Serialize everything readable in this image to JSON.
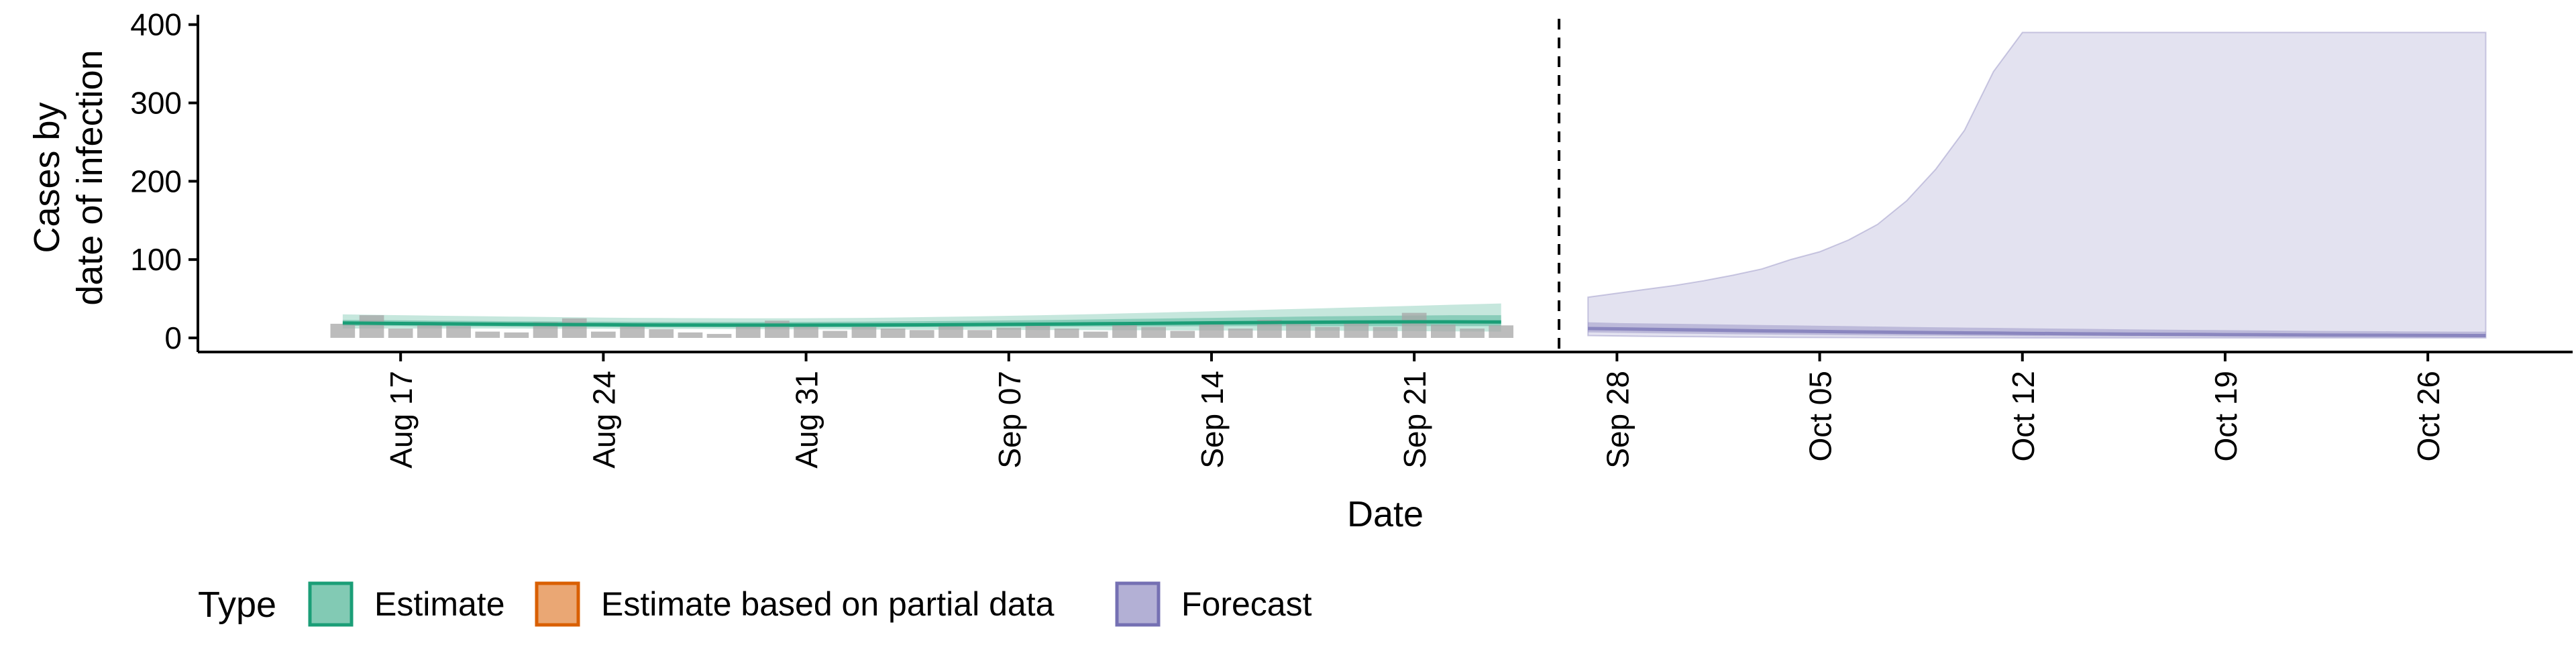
{
  "chart_data": {
    "type": "area",
    "title": "",
    "xlabel": "Date",
    "ylabel": [
      "Cases by",
      "date of infection"
    ],
    "ylim": [
      -18,
      410
    ],
    "xlim": [
      "2020-08-10",
      "2020-10-31"
    ],
    "y_ticks": [
      0,
      100,
      200,
      300,
      400
    ],
    "x_ticks": [
      {
        "date": "2020-08-17",
        "label": "Aug 17"
      },
      {
        "date": "2020-08-24",
        "label": "Aug 24"
      },
      {
        "date": "2020-08-31",
        "label": "Aug 31"
      },
      {
        "date": "2020-09-07",
        "label": "Sep 07"
      },
      {
        "date": "2020-09-14",
        "label": "Sep 14"
      },
      {
        "date": "2020-09-21",
        "label": "Sep 21"
      },
      {
        "date": "2020-09-28",
        "label": "Sep 28"
      },
      {
        "date": "2020-10-05",
        "label": "Oct 05"
      },
      {
        "date": "2020-10-12",
        "label": "Oct 12"
      },
      {
        "date": "2020-10-19",
        "label": "Oct 19"
      },
      {
        "date": "2020-10-26",
        "label": "Oct 26"
      }
    ],
    "divider_date": "2020-09-26",
    "grid": false,
    "colors": {
      "estimate": "#1b9e77",
      "partial": "#d95f02",
      "forecast": "#7570b3",
      "bars": "#a6a6a6",
      "divider": "#000000"
    },
    "observed_cases": {
      "start_date": "2020-08-15",
      "values": [
        18,
        29,
        12,
        16,
        15,
        8,
        7,
        20,
        25,
        8,
        16,
        11,
        7,
        5,
        16,
        22,
        15,
        9,
        14,
        12,
        10,
        17,
        10,
        13,
        17,
        12,
        8,
        20,
        14,
        9,
        21,
        12,
        23,
        20,
        14,
        21,
        14,
        32,
        17,
        12,
        16
      ]
    },
    "estimate": {
      "start_date": "2020-08-15",
      "median": [
        19,
        18.7,
        18.4,
        18.1,
        17.9,
        17.6,
        17.4,
        17.2,
        17,
        16.8,
        16.6,
        16.5,
        16.4,
        16.3,
        16.3,
        16.3,
        16.3,
        16.4,
        16.5,
        16.6,
        16.7,
        16.9,
        17.1,
        17.3,
        17.5,
        17.7,
        18,
        18.3,
        18.6,
        18.9,
        19.2,
        19.5,
        19.7,
        19.9,
        20.1,
        20.3,
        20.4,
        20.5,
        20.5,
        20.4,
        20.3
      ],
      "lower_90": [
        12,
        12,
        12,
        12,
        12,
        12,
        11.9,
        11.8,
        11.7,
        11.6,
        11.5,
        11.4,
        11.3,
        11.2,
        11.1,
        11,
        10.9,
        10.8,
        10.7,
        10.6,
        10.5,
        10.4,
        10.3,
        10.2,
        10.1,
        10,
        9.9,
        9.8,
        9.7,
        9.6,
        9.5,
        9.4,
        9.3,
        9.2,
        9.1,
        9,
        8.8,
        8.6,
        8.4,
        8.2,
        8
      ],
      "upper_90": [
        30,
        29.5,
        29,
        28.5,
        28,
        27.5,
        27.1,
        26.7,
        26.3,
        25.9,
        25.6,
        25.4,
        25.2,
        25.1,
        25,
        25,
        25.1,
        25.3,
        25.6,
        26,
        26.5,
        27,
        27.6,
        28.2,
        28.9,
        29.6,
        30.4,
        31.3,
        32.2,
        33.1,
        34,
        35,
        36,
        37,
        38,
        39,
        40,
        41,
        42,
        43,
        44
      ],
      "lower_50": [
        15.5,
        15.3,
        15.1,
        14.9,
        14.7,
        14.5,
        14.3,
        14.1,
        14,
        13.9,
        13.8,
        13.7,
        13.6,
        13.6,
        13.6,
        13.6,
        13.6,
        13.6,
        13.7,
        13.8,
        13.9,
        14,
        14.1,
        14.2,
        14.3,
        14.4,
        14.5,
        14.6,
        14.7,
        14.8,
        14.9,
        15,
        15,
        15,
        15,
        15,
        15,
        15,
        15,
        15,
        15
      ],
      "upper_50": [
        23,
        22.7,
        22.4,
        22.1,
        21.8,
        21.5,
        21.3,
        21.1,
        20.9,
        20.7,
        20.5,
        20.4,
        20.3,
        20.3,
        20.3,
        20.3,
        20.4,
        20.6,
        20.8,
        21,
        21.3,
        21.6,
        21.9,
        22.3,
        22.7,
        23.1,
        23.6,
        24.1,
        24.6,
        25.1,
        25.6,
        26.1,
        26.6,
        27.1,
        27.5,
        27.9,
        28.3,
        28.6,
        28.9,
        29,
        29
      ]
    },
    "forecast": {
      "start_date": "2020-09-27",
      "median": [
        12,
        11.5,
        11,
        10.5,
        10,
        9.5,
        9,
        8.6,
        8.2,
        7.8,
        7.4,
        7,
        6.7,
        6.4,
        6.1,
        5.8,
        5.5,
        5.2,
        5,
        4.8,
        4.6,
        4.4,
        4.2,
        4,
        3.8,
        3.6,
        3.5,
        3.4,
        3.3,
        3.2,
        3.1,
        3
      ],
      "lower_90": [
        3,
        2.5,
        2,
        1.7,
        1.4,
        1.1,
        0.9,
        0.7,
        0.5,
        0.4,
        0.3,
        0.2,
        0.1,
        0.1,
        0.1,
        0,
        0,
        0,
        0,
        0,
        0,
        0,
        0,
        0,
        0,
        0,
        0,
        0,
        0,
        0,
        0,
        0
      ],
      "upper_90": [
        52,
        57,
        62,
        67,
        73,
        80,
        88,
        100,
        110,
        125,
        145,
        175,
        215,
        265,
        340,
        390,
        390,
        390,
        390,
        390,
        390,
        390,
        390,
        390,
        390,
        390,
        390,
        390,
        390,
        390,
        390,
        390
      ],
      "lower_50": [
        7,
        6.5,
        6,
        5.5,
        5.1,
        4.7,
        4.3,
        4,
        3.7,
        3.4,
        3.1,
        2.9,
        2.7,
        2.5,
        2.3,
        2.1,
        2,
        1.9,
        1.8,
        1.7,
        1.6,
        1.5,
        1.4,
        1.3,
        1.2,
        1.1,
        1,
        1,
        1,
        1,
        1,
        1
      ],
      "upper_50": [
        20,
        19,
        18.5,
        18,
        17.5,
        17,
        16.5,
        16,
        15.5,
        15,
        14.5,
        14,
        13.6,
        13.2,
        12.8,
        12.4,
        12,
        11.6,
        11.2,
        10.8,
        10.5,
        10.2,
        9.9,
        9.6,
        9.3,
        9,
        8.8,
        8.6,
        8.4,
        8.2,
        8,
        8
      ]
    },
    "legend": {
      "position": "bottom",
      "title": "Type",
      "items": [
        {
          "label": "Estimate",
          "color": "#1b9e77"
        },
        {
          "label": "Estimate based on partial data",
          "color": "#d95f02"
        },
        {
          "label": "Forecast",
          "color": "#7570b3"
        }
      ]
    }
  }
}
